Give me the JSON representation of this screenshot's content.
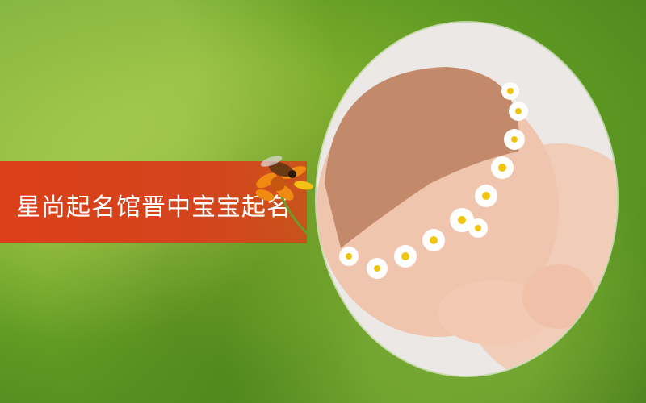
{
  "banner": {
    "title": "星尚起名馆晋中宝宝起名"
  },
  "images": {
    "photo": "baby-with-daisy-crown",
    "decoration": "bee-on-orange-flower"
  },
  "colors": {
    "banner": "#dc3f1a",
    "background": "#7fae2c"
  }
}
